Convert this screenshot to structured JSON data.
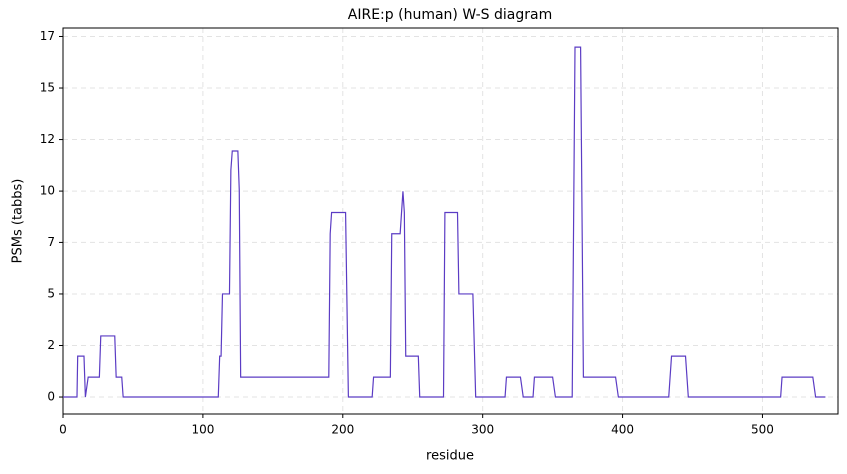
{
  "chart_data": {
    "type": "line",
    "title": "AIRE:p (human) W-S diagram",
    "xlabel": "residue",
    "ylabel": "PSMs (tabbs)",
    "x": [
      0,
      10,
      10.5,
      15,
      16,
      18,
      26,
      27,
      37,
      38,
      42,
      43,
      111,
      112,
      113,
      114,
      119,
      120,
      121,
      125,
      126,
      127,
      190,
      191,
      192,
      202,
      204,
      221,
      222,
      234,
      235,
      241,
      243,
      244,
      245,
      254,
      255,
      272,
      273,
      282,
      283,
      293,
      295,
      316,
      317,
      327,
      329,
      336,
      337,
      350,
      352,
      364,
      366,
      370,
      372,
      395,
      397,
      433,
      435,
      445,
      447,
      513,
      514,
      536,
      538,
      545
    ],
    "series": [
      {
        "name": "PSMs",
        "color": "#5b3cc4",
        "values": [
          0,
          0,
          1.93,
          1.93,
          0,
          0.94,
          0.94,
          2.88,
          2.88,
          0.94,
          0.94,
          0,
          0,
          1.93,
          1.93,
          4.86,
          4.86,
          10.7,
          11.6,
          11.6,
          9.76,
          0.94,
          0.94,
          7.7,
          8.7,
          8.7,
          0,
          0,
          0.94,
          0.94,
          7.7,
          7.7,
          9.7,
          8.7,
          1.93,
          1.93,
          0,
          0,
          8.7,
          8.7,
          4.86,
          4.86,
          0,
          0,
          0.94,
          0.94,
          0,
          0,
          0.94,
          0.94,
          0,
          0,
          16.5,
          16.5,
          0.94,
          0.94,
          0,
          0,
          1.93,
          1.93,
          0,
          0,
          0.94,
          0.94,
          0,
          0
        ]
      }
    ],
    "xlim": [
      0,
      554
    ],
    "ylim": [
      -0.8,
      17.4
    ],
    "xticks": [
      0,
      100,
      200,
      300,
      400,
      500
    ],
    "yticks": [
      0,
      {
        "value": 2.43,
        "label": "2"
      },
      {
        "value": 4.86,
        "label": "5"
      },
      {
        "value": 7.29,
        "label": "7"
      },
      {
        "value": 9.71,
        "label": "10"
      },
      {
        "value": 12.14,
        "label": "12"
      },
      {
        "value": 14.57,
        "label": "15"
      },
      17
    ],
    "grid": true
  }
}
